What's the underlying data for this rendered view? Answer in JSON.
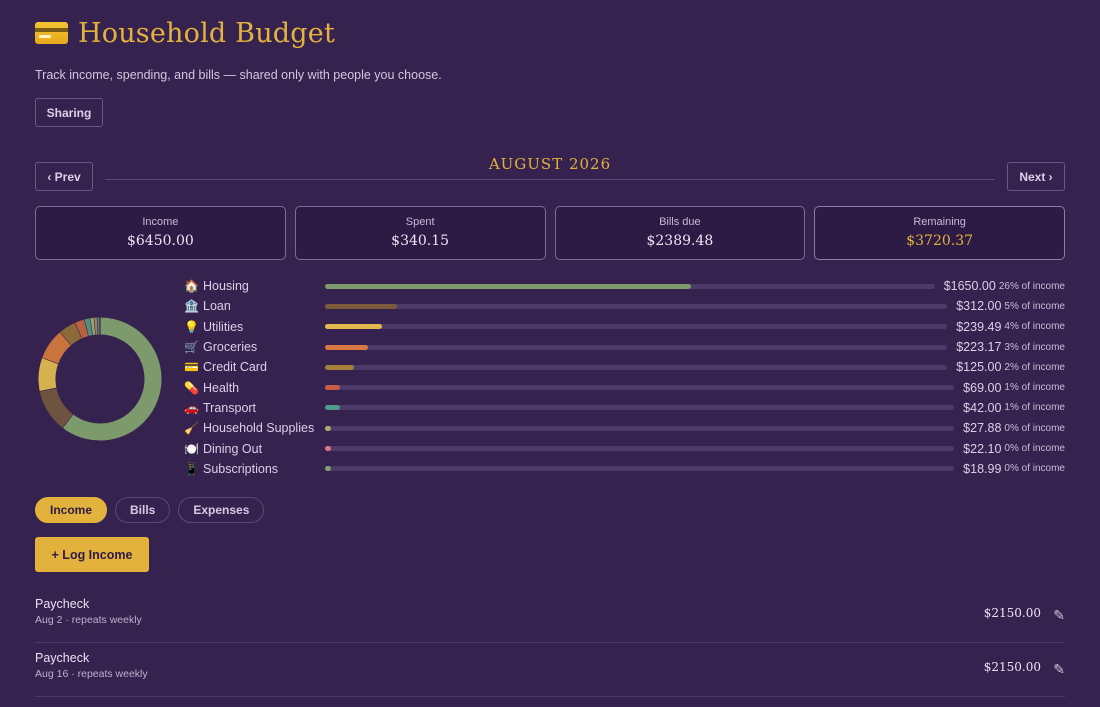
{
  "header": {
    "title": "Household Budget",
    "icon": "credit-card-icon",
    "subtitle": "Track income, spending, and bills — shared only with people you choose.",
    "sharing_label": "Sharing"
  },
  "month_nav": {
    "prev_label": "‹ Prev",
    "next_label": "Next ›",
    "month": "AUGUST 2026"
  },
  "stats": [
    {
      "label": "Income",
      "value": "$6450.00"
    },
    {
      "label": "Spent",
      "value": "$340.15"
    },
    {
      "label": "Bills due",
      "value": "$2389.48"
    },
    {
      "label": "Remaining",
      "value": "$3720.37"
    }
  ],
  "categories": [
    {
      "emoji": "🏠",
      "name": "Housing",
      "amount": "$1650.00",
      "pct": "26% of income",
      "share": 0.26,
      "color": "#7d9a6c"
    },
    {
      "emoji": "🏦",
      "name": "Loan",
      "amount": "$312.00",
      "pct": "5% of income",
      "share": 0.05,
      "color": "#7c5a3c"
    },
    {
      "emoji": "💡",
      "name": "Utilities",
      "amount": "$239.49",
      "pct": "4% of income",
      "share": 0.04,
      "color": "#e3b94d"
    },
    {
      "emoji": "🛒",
      "name": "Groceries",
      "amount": "$223.17",
      "pct": "3% of income",
      "share": 0.03,
      "color": "#d97840"
    },
    {
      "emoji": "💳",
      "name": "Credit Card",
      "amount": "$125.00",
      "pct": "2% of income",
      "share": 0.02,
      "color": "#a8803e"
    },
    {
      "emoji": "💊",
      "name": "Health",
      "amount": "$69.00",
      "pct": "1% of income",
      "share": 0.01,
      "color": "#c95c45"
    },
    {
      "emoji": "🚗",
      "name": "Transport",
      "amount": "$42.00",
      "pct": "1% of income",
      "share": 0.01,
      "color": "#4e9a8c"
    },
    {
      "emoji": "🧹",
      "name": "Household Supplies",
      "amount": "$27.88",
      "pct": "0% of income",
      "share": 0.0043,
      "color": "#a5b06a"
    },
    {
      "emoji": "🍽️",
      "name": "Dining Out",
      "amount": "$22.10",
      "pct": "0% of income",
      "share": 0.0034,
      "color": "#d8768a"
    },
    {
      "emoji": "📱",
      "name": "Subscriptions",
      "amount": "$18.99",
      "pct": "0% of income",
      "share": 0.0029,
      "color": "#7f9e75"
    }
  ],
  "donut_values": [
    1650.0,
    312.0,
    239.49,
    223.17,
    125.0,
    69.0,
    42.0,
    27.88,
    22.1,
    18.99
  ],
  "donut_colors": [
    "#7d9a6c",
    "#6e5340",
    "#d6b14e",
    "#c9743f",
    "#8e6a3a",
    "#b8603f",
    "#4f8f84",
    "#93a66a",
    "#a08160",
    "#5c7f7a"
  ],
  "tabs": {
    "income": "Income",
    "bills": "Bills",
    "expenses": "Expenses"
  },
  "log_button": "+ Log Income",
  "entries": [
    {
      "name": "Paycheck",
      "meta": "Aug 2 · repeats weekly",
      "amount": "$2150.00"
    },
    {
      "name": "Paycheck",
      "meta": "Aug 16 · repeats weekly",
      "amount": "$2150.00"
    }
  ],
  "edit_icon": "pencil-icon",
  "colors": {
    "background": "#36224f",
    "accent": "#e3b23c"
  }
}
